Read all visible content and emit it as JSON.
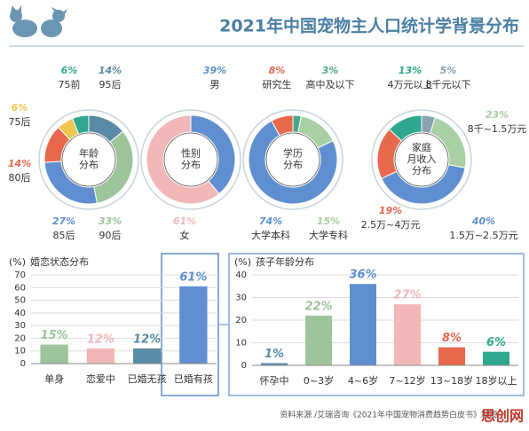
{
  "title": "2021年中国宠物主人口统计学背景分布",
  "source": "资料来源 /艾瑞咨询《2021年中国宠物消费趋势白皮书》制图",
  "watermark": "思创网",
  "chart_data": [
    {
      "type": "donut",
      "center_label": [
        "年龄",
        "分布"
      ],
      "categories": [
        "95后",
        "90后",
        "85后",
        "80后",
        "75后",
        "75前"
      ],
      "values": [
        14,
        33,
        27,
        14,
        6,
        6
      ],
      "value_labels": [
        "14%",
        "33%",
        "27%",
        "14%",
        "6%",
        "6%"
      ],
      "colors": [
        "#5b8aa6",
        "#9dc49b",
        "#5f8fd0",
        "#e8684e",
        "#f1c64e",
        "#2ea88e"
      ]
    },
    {
      "type": "donut",
      "center_label": [
        "性别",
        "分布"
      ],
      "categories": [
        "男",
        "女"
      ],
      "values": [
        39,
        61
      ],
      "value_labels": [
        "39%",
        "61%"
      ],
      "colors": [
        "#5f8fd0",
        "#f2b8b8"
      ]
    },
    {
      "type": "donut",
      "center_label": [
        "学历",
        "分布"
      ],
      "categories": [
        "高中及以下",
        "大学专科",
        "大学本科",
        "研究生"
      ],
      "values": [
        3,
        15,
        74,
        8
      ],
      "value_labels": [
        "3%",
        "15%",
        "74%",
        "8%"
      ],
      "colors": [
        "#4fa58a",
        "#a9cfa4",
        "#5f8fd0",
        "#e8684e"
      ]
    },
    {
      "type": "donut",
      "center_label": [
        "家庭",
        "月收入",
        "分布"
      ],
      "categories": [
        "8千元以下",
        "8千~1.5万元",
        "1.5万~2.5万元",
        "2.5万~4万元",
        "4万元以上"
      ],
      "values": [
        5,
        23,
        40,
        19,
        13
      ],
      "value_labels": [
        "5%",
        "23%",
        "40%",
        "19%",
        "13%"
      ],
      "colors": [
        "#8aa3b3",
        "#a9cfa4",
        "#5f8fd0",
        "#e8684e",
        "#2ea88e"
      ]
    },
    {
      "type": "bar",
      "title": "婚恋状态分布",
      "y_label": "(%)",
      "categories": [
        "单身",
        "恋爱中",
        "已婚无孩",
        "已婚有孩"
      ],
      "values": [
        15,
        12,
        12,
        61
      ],
      "value_labels": [
        "15%",
        "12%",
        "12%",
        "61%"
      ],
      "colors": [
        "#9dc49b",
        "#f2b8b8",
        "#5b8aa6",
        "#5f8fd0"
      ],
      "ylim": [
        0,
        70
      ],
      "yticks": [
        0,
        10,
        20,
        30,
        40,
        50,
        60,
        70
      ]
    },
    {
      "type": "bar",
      "title": "孩子年龄分布",
      "y_label": "(%)",
      "categories": [
        "怀孕中",
        "0~3岁",
        "4~6岁",
        "7~12岁",
        "13~18岁",
        "18岁以上"
      ],
      "values": [
        1,
        22,
        36,
        27,
        8,
        6
      ],
      "value_labels": [
        "1%",
        "22%",
        "36%",
        "27%",
        "8%",
        "6%"
      ],
      "colors": [
        "#5b8aa6",
        "#9dc49b",
        "#5f8fd0",
        "#f2b8b8",
        "#e8684e",
        "#2ea88e"
      ],
      "ylim": [
        0,
        40
      ],
      "yticks": [
        0,
        10,
        20,
        30,
        40
      ]
    }
  ]
}
